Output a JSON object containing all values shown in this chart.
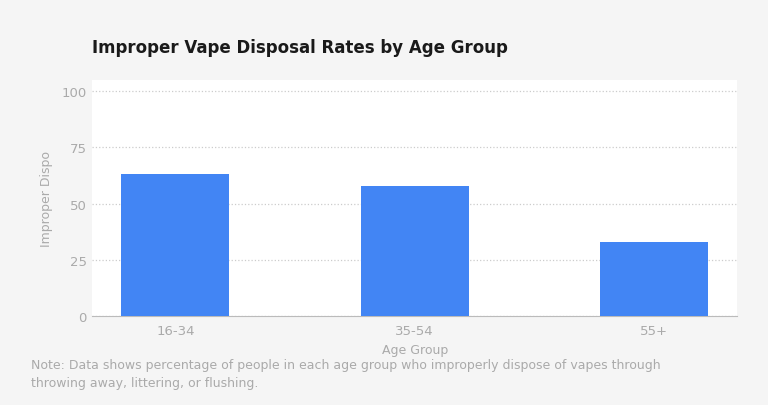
{
  "title": "Improper Vape Disposal Rates by Age Group",
  "categories": [
    "16-34",
    "35-54",
    "55+"
  ],
  "values": [
    63,
    58,
    33
  ],
  "bar_color": "#4285F4",
  "xlabel": "Age Group",
  "ylabel": "Improper Dispo",
  "ylim": [
    0,
    105
  ],
  "yticks": [
    0,
    25,
    50,
    75,
    100
  ],
  "note": "Note: Data shows percentage of people in each age group who improperly dispose of vapes through\nthrowing away, littering, or flushing.",
  "background_color": "#f5f5f5",
  "card_color": "#ffffff",
  "grid_color": "#cccccc",
  "title_fontsize": 12,
  "label_fontsize": 9,
  "tick_fontsize": 9.5,
  "note_fontsize": 9
}
